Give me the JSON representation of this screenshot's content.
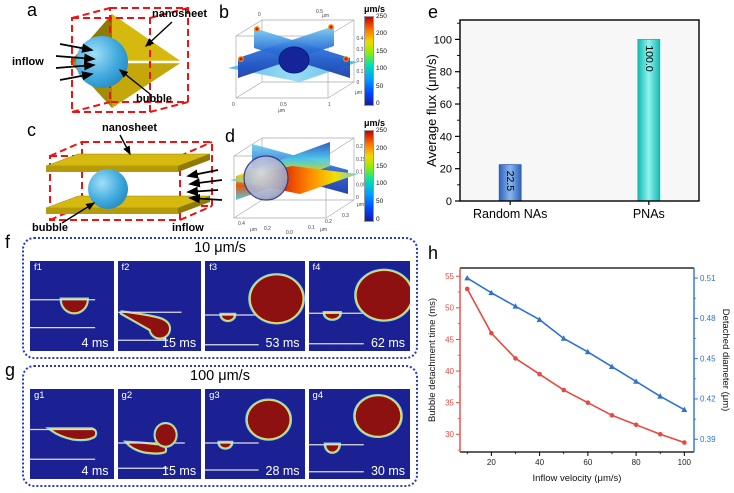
{
  "panel_letters": {
    "a": "a",
    "b": "b",
    "c": "c",
    "d": "d",
    "e": "e",
    "f": "f",
    "g": "g",
    "h": "h"
  },
  "schematic_a": {
    "nanosheet_label": "nanosheet",
    "inflow_label": "inflow",
    "bubble_label": "bubble"
  },
  "schematic_c": {
    "nanosheet_label": "nanosheet",
    "inflow_label": "inflow",
    "bubble_label": "bubble"
  },
  "sim_b": {
    "colorbar_title": "μm/s",
    "colorbar_ticks": [
      "250",
      "200",
      "150",
      "100",
      "50",
      "0"
    ],
    "axis": {
      "right_ticks": [
        "0.4",
        "0.3",
        "0.2",
        "0.1",
        "0"
      ],
      "bottom_ticks": [
        "0",
        "0.5",
        "1"
      ],
      "top_ticks": [
        "0",
        "0.5"
      ],
      "unit": "μm"
    }
  },
  "sim_d": {
    "colorbar_title": "μm/s",
    "colorbar_ticks": [
      "250",
      "200",
      "150",
      "100",
      "50",
      "0"
    ],
    "axis": {
      "right_ticks": [
        "0.2",
        "0.15",
        "0.1",
        "0.05",
        "0"
      ],
      "bottom_left_ticks": [
        "0.4",
        "0.2"
      ],
      "bottom_right_ticks": [
        "0.1",
        "0.2",
        "0.3"
      ],
      "origin_tick": "0.0",
      "unit": "μm"
    }
  },
  "snapshots_f": {
    "title": "10 μm/s",
    "frames": [
      {
        "id": "f1",
        "time": "4 ms"
      },
      {
        "id": "f2",
        "time": "15 ms"
      },
      {
        "id": "f3",
        "time": "53 ms"
      },
      {
        "id": "f4",
        "time": "62 ms"
      }
    ]
  },
  "snapshots_g": {
    "title": "100 μm/s",
    "frames": [
      {
        "id": "g1",
        "time": "4 ms"
      },
      {
        "id": "g2",
        "time": "15 ms"
      },
      {
        "id": "g3",
        "time": "28 ms"
      },
      {
        "id": "g4",
        "time": "30 ms"
      }
    ]
  },
  "chart_data": [
    {
      "id": "e",
      "type": "bar",
      "title": "",
      "categories": [
        "Random NAs",
        "PNAs"
      ],
      "values": [
        22.5,
        100.0
      ],
      "value_labels": [
        "22.5",
        "100.0"
      ],
      "ylabel": "Average flux (μm/s)",
      "yticks": [
        0,
        20,
        40,
        60,
        80,
        100
      ],
      "ylim": [
        0,
        112
      ],
      "bar_centers_frac": [
        0.21,
        0.79
      ],
      "bar_colors": [
        {
          "edge": "#2e61b8",
          "center": "#8ab6f0"
        },
        {
          "edge": "#16b8b4",
          "center": "#90f4ee"
        }
      ]
    },
    {
      "id": "h",
      "type": "line",
      "xlabel": "Inflow velocity (μm/s)",
      "x": [
        10,
        20,
        30,
        40,
        50,
        60,
        70,
        80,
        90,
        100
      ],
      "xticks": [
        20,
        40,
        60,
        80,
        100
      ],
      "xlim": [
        7,
        104
      ],
      "left_axis": {
        "label": "Bubble detachment time (ms)",
        "ticks": [
          55,
          50,
          45,
          40,
          35,
          30
        ],
        "lim": [
          27.2,
          56.3
        ],
        "color": "#e8483f"
      },
      "right_axis": {
        "label": "Detached diameter (μm)",
        "ticks": [
          "0.51",
          "0.48",
          "0.45",
          "0.42",
          "0.39"
        ],
        "lim": [
          0.3805,
          0.5175
        ],
        "color": "#2d72d2"
      },
      "series": [
        {
          "name": "Bubble detachment time",
          "axis": "left",
          "color": "#e8483f",
          "marker": "circle",
          "values": [
            53,
            46,
            42,
            39.5,
            37,
            35,
            33,
            31.5,
            30,
            28.7
          ]
        },
        {
          "name": "Detached diameter",
          "axis": "right",
          "color": "#2d72d2",
          "marker": "triangle",
          "values": [
            0.51,
            0.499,
            0.489,
            0.479,
            0.465,
            0.455,
            0.444,
            0.433,
            0.422,
            0.412
          ]
        }
      ]
    }
  ]
}
